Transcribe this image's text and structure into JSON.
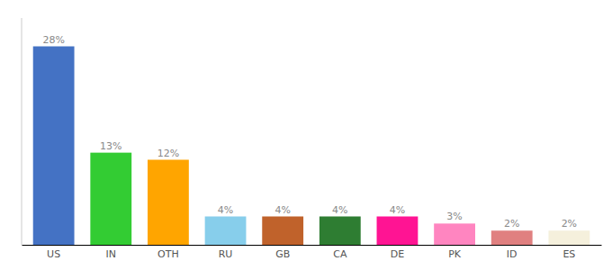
{
  "chart_data": {
    "type": "bar",
    "categories": [
      "US",
      "IN",
      "OTH",
      "RU",
      "GB",
      "CA",
      "DE",
      "PK",
      "ID",
      "ES"
    ],
    "values": [
      28,
      13,
      12,
      4,
      4,
      4,
      4,
      3,
      2,
      2
    ],
    "value_labels": [
      "28%",
      "13%",
      "12%",
      "4%",
      "4%",
      "4%",
      "4%",
      "3%",
      "2%",
      "2%"
    ],
    "colors": [
      "#4472C4",
      "#33CC33",
      "#FFA500",
      "#87CEEB",
      "#C0622B",
      "#2E7D32",
      "#FF1493",
      "#FF85C0",
      "#E08080",
      "#F5F0DC"
    ],
    "ylim": [
      0,
      32
    ],
    "data_labels": true,
    "tick_labels": "x",
    "grid": false
  }
}
